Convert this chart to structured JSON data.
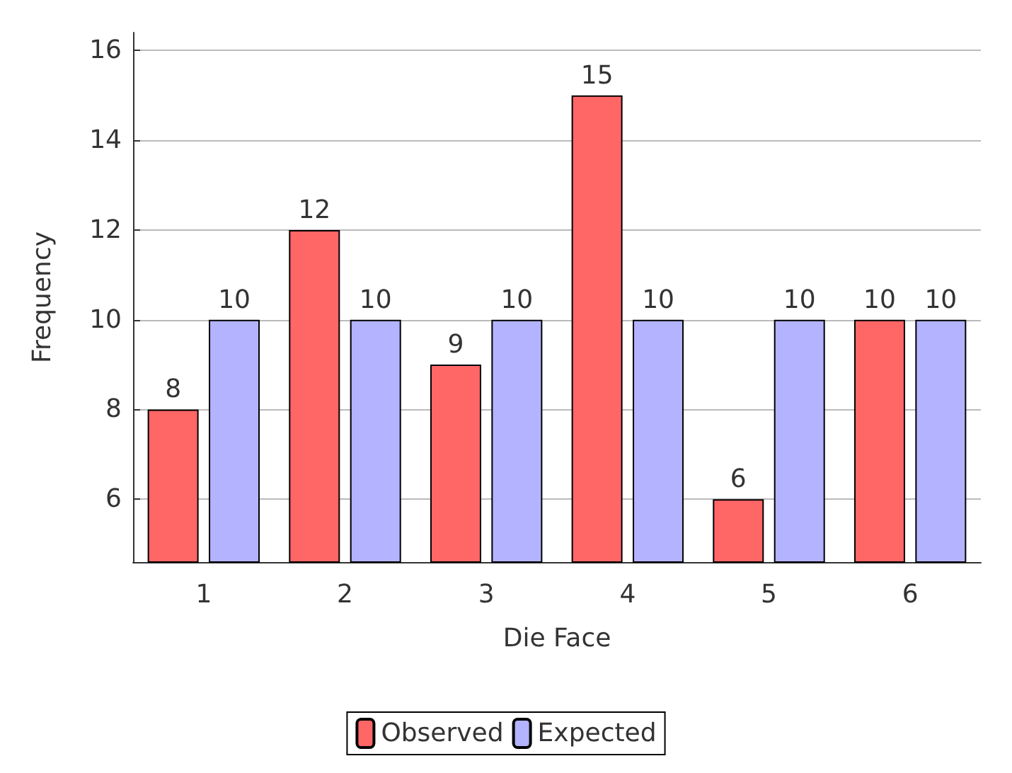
{
  "chart_data": {
    "type": "bar",
    "xlabel": "Die Face",
    "ylabel": "Frequency",
    "categories": [
      "1",
      "2",
      "3",
      "4",
      "5",
      "6"
    ],
    "series": [
      {
        "name": "Observed",
        "color": "#ff6666",
        "values": [
          8,
          12,
          9,
          15,
          6,
          10
        ]
      },
      {
        "name": "Expected",
        "color": "#b3b3ff",
        "values": [
          10,
          10,
          10,
          10,
          10,
          10
        ]
      }
    ],
    "ylim": [
      4.6,
      16.4
    ],
    "yticks": [
      6,
      8,
      10,
      12,
      14,
      16
    ],
    "grid": "y",
    "legend": "bottom",
    "data_labels": true
  }
}
